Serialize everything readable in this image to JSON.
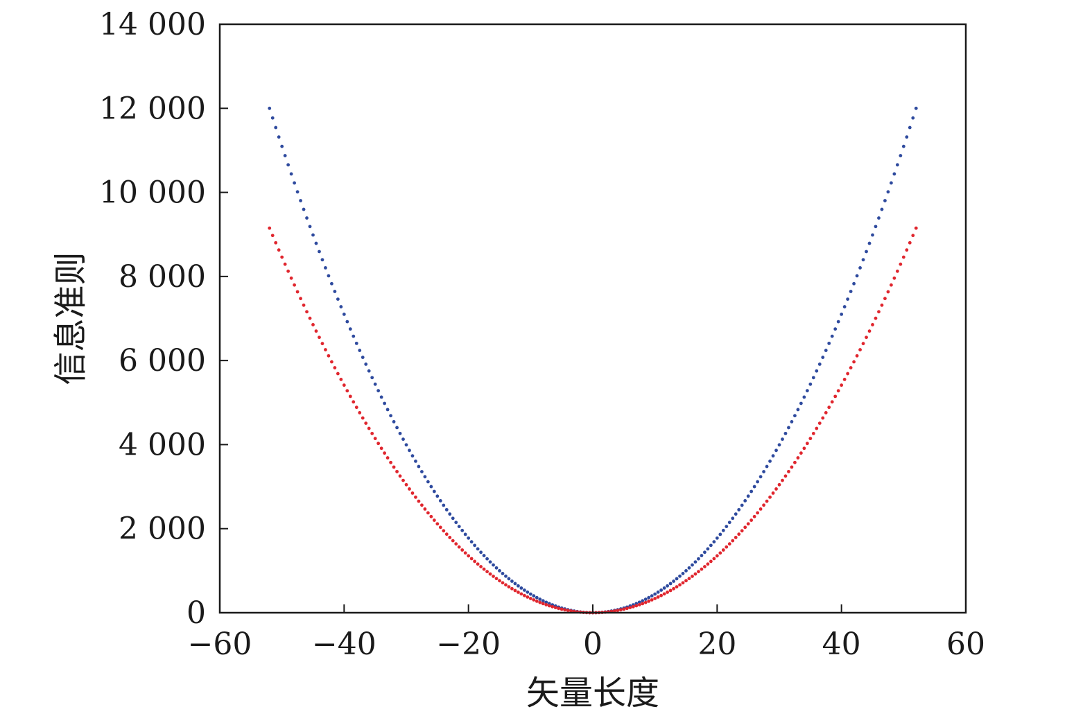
{
  "chart_data": {
    "type": "scatter",
    "title": "",
    "xlabel": "矢量长度",
    "ylabel": "信息准则",
    "xlim": [
      -60,
      60
    ],
    "ylim": [
      0,
      14000
    ],
    "x_ticks": [
      -60,
      -40,
      -20,
      0,
      20,
      40,
      60
    ],
    "x_tick_labels": [
      "−60",
      "−40",
      "−20",
      "0",
      "20",
      "40",
      "60"
    ],
    "y_ticks": [
      0,
      2000,
      4000,
      6000,
      8000,
      10000,
      12000,
      14000
    ],
    "y_tick_labels": [
      "0",
      "2 000",
      "4 000",
      "6 000",
      "8 000",
      "10 000",
      "12 000",
      "14 000"
    ],
    "grid": false,
    "legend": "none",
    "series": [
      {
        "color": "#2e4a9e",
        "x_range": [
          -52,
          52
        ],
        "x_step": 0.5,
        "y_at_x_minus_52": 12000,
        "y_at_x_0": 0,
        "y_at_x_52": 12000
      },
      {
        "color": "#e0262e",
        "x_range": [
          -52,
          52
        ],
        "x_step": 0.5,
        "y_at_x_minus_52": 9150,
        "y_at_x_0": 0,
        "y_at_x_52": 9150
      }
    ]
  }
}
